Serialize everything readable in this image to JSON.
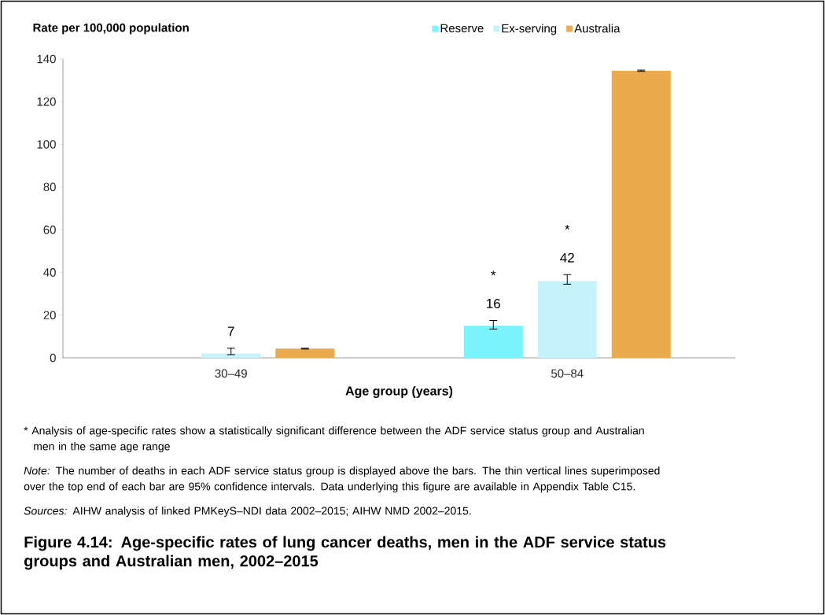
{
  "chart_data": {
    "type": "bar",
    "title": "Figure 4.14: Age-specific rates of lung cancer deaths, men in the ADF service status groups and Australian men, 2002–2015",
    "ylabel": "Rate per 100,000 population",
    "xlabel": "Age group (years)",
    "categories": [
      "30–49",
      "50–84"
    ],
    "series": [
      {
        "name": "Reserve",
        "color": "#7af4fc",
        "values": [
          null,
          15
        ],
        "errors": [
          null,
          [
            13.5,
            17.5
          ]
        ]
      },
      {
        "name": "Ex-serving",
        "color": "#c6f3fb",
        "values": [
          2,
          36
        ],
        "errors": [
          [
            1.5,
            4.5
          ],
          [
            34.5,
            39
          ]
        ]
      },
      {
        "name": "Australia",
        "color": "#eaaa4d",
        "values": [
          4.3,
          134.5
        ],
        "errors": [
          [
            4.1,
            4.5
          ],
          [
            134.2,
            134.8
          ]
        ]
      }
    ],
    "ylim": [
      0,
      140
    ],
    "yticks": [
      0,
      20,
      40,
      60,
      80,
      100,
      120,
      140
    ],
    "grid": false,
    "legend": "top",
    "annotations": [
      "7",
      "16",
      "*",
      "42",
      "*",
      "* Analysis of age-specific rates show a statistically significant difference between the ADF service status group and Australian men in the same age range",
      "*Note:* The number of deaths in each ADF service status group is displayed above the bars. The thin vertical lines superimposed over the top end of each bar are 95% confidence intervals. Data underlying this figure are available in Appendix Table C15.",
      "*Sources:* AIHW analysis of linked PMKeyS–NDI data 2002–2015; AIHW NMD 2002–2015."
    ]
  }
}
